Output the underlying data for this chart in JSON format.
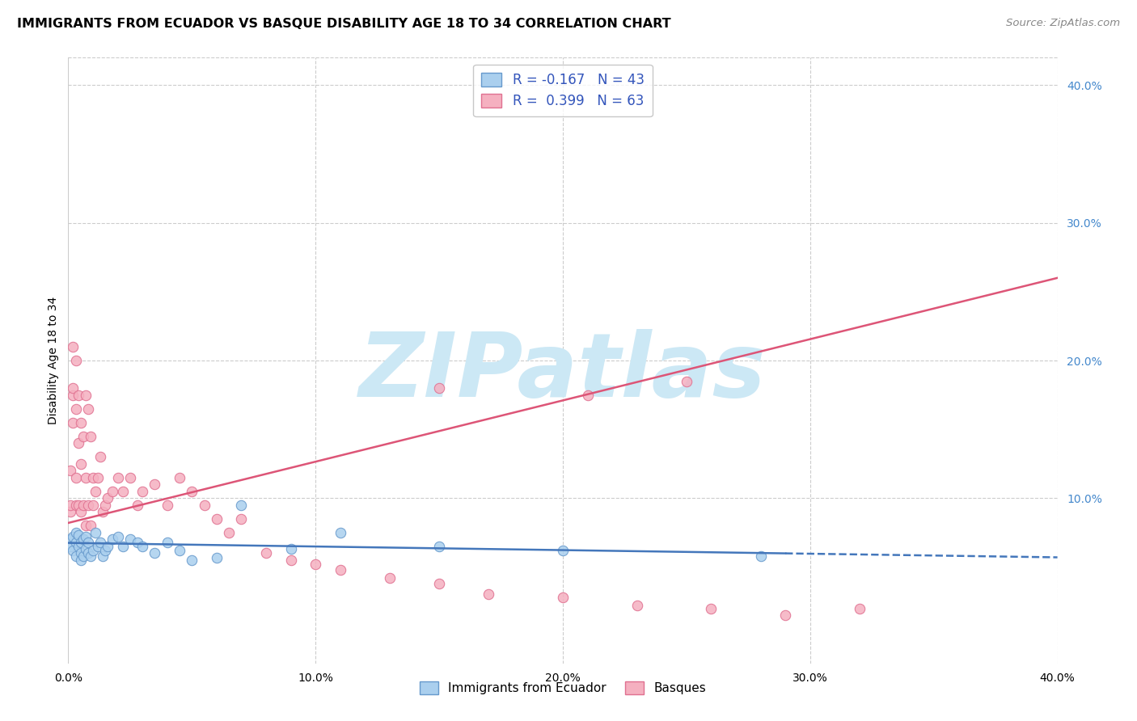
{
  "title": "IMMIGRANTS FROM ECUADOR VS BASQUE DISABILITY AGE 18 TO 34 CORRELATION CHART",
  "source": "Source: ZipAtlas.com",
  "ylabel": "Disability Age 18 to 34",
  "xlim": [
    0.0,
    0.4
  ],
  "ylim": [
    -0.02,
    0.42
  ],
  "xticks": [
    0.0,
    0.1,
    0.2,
    0.3,
    0.4
  ],
  "yticks_right": [
    0.1,
    0.2,
    0.3,
    0.4
  ],
  "xtick_labels": [
    "0.0%",
    "10.0%",
    "20.0%",
    "30.0%",
    "40.0%"
  ],
  "ytick_labels_right": [
    "10.0%",
    "20.0%",
    "30.0%",
    "40.0%"
  ],
  "grid_color": "#cccccc",
  "background_color": "#ffffff",
  "watermark_text": "ZIPatlas",
  "watermark_color": "#cce8f5",
  "ecuador_color": "#aacfee",
  "ecuador_edge_color": "#6699cc",
  "basque_color": "#f5b0c0",
  "basque_edge_color": "#e07090",
  "ecuador_R": -0.167,
  "ecuador_N": 43,
  "basque_R": 0.399,
  "basque_N": 63,
  "legend_label_ecuador": "Immigrants from Ecuador",
  "legend_label_basque": "Basques",
  "legend_R_color": "#3355bb",
  "ecuador_line_color": "#4477bb",
  "basque_line_color": "#dd5577",
  "ecuador_x": [
    0.001,
    0.001,
    0.002,
    0.002,
    0.003,
    0.003,
    0.003,
    0.004,
    0.004,
    0.005,
    0.005,
    0.005,
    0.006,
    0.006,
    0.007,
    0.007,
    0.008,
    0.008,
    0.009,
    0.01,
    0.011,
    0.012,
    0.013,
    0.014,
    0.015,
    0.016,
    0.018,
    0.02,
    0.022,
    0.025,
    0.028,
    0.03,
    0.035,
    0.04,
    0.045,
    0.05,
    0.06,
    0.07,
    0.09,
    0.11,
    0.15,
    0.2,
    0.28
  ],
  "ecuador_y": [
    0.07,
    0.065,
    0.072,
    0.062,
    0.068,
    0.075,
    0.058,
    0.065,
    0.073,
    0.068,
    0.06,
    0.055,
    0.07,
    0.058,
    0.072,
    0.063,
    0.06,
    0.068,
    0.058,
    0.062,
    0.075,
    0.065,
    0.068,
    0.058,
    0.062,
    0.065,
    0.07,
    0.072,
    0.065,
    0.07,
    0.068,
    0.065,
    0.06,
    0.068,
    0.062,
    0.055,
    0.057,
    0.095,
    0.063,
    0.075,
    0.065,
    0.062,
    0.058
  ],
  "basque_x": [
    0.001,
    0.001,
    0.001,
    0.002,
    0.002,
    0.002,
    0.002,
    0.003,
    0.003,
    0.003,
    0.003,
    0.004,
    0.004,
    0.004,
    0.005,
    0.005,
    0.005,
    0.006,
    0.006,
    0.007,
    0.007,
    0.007,
    0.008,
    0.008,
    0.009,
    0.009,
    0.01,
    0.01,
    0.011,
    0.012,
    0.013,
    0.014,
    0.015,
    0.016,
    0.018,
    0.02,
    0.022,
    0.025,
    0.028,
    0.03,
    0.035,
    0.04,
    0.045,
    0.05,
    0.055,
    0.06,
    0.065,
    0.07,
    0.08,
    0.09,
    0.1,
    0.11,
    0.13,
    0.15,
    0.17,
    0.2,
    0.23,
    0.26,
    0.29,
    0.32,
    0.15,
    0.21,
    0.25
  ],
  "basque_y": [
    0.09,
    0.12,
    0.095,
    0.175,
    0.21,
    0.18,
    0.155,
    0.2,
    0.165,
    0.115,
    0.095,
    0.175,
    0.14,
    0.095,
    0.155,
    0.125,
    0.09,
    0.145,
    0.095,
    0.175,
    0.115,
    0.08,
    0.165,
    0.095,
    0.145,
    0.08,
    0.115,
    0.095,
    0.105,
    0.115,
    0.13,
    0.09,
    0.095,
    0.1,
    0.105,
    0.115,
    0.105,
    0.115,
    0.095,
    0.105,
    0.11,
    0.095,
    0.115,
    0.105,
    0.095,
    0.085,
    0.075,
    0.085,
    0.06,
    0.055,
    0.052,
    0.048,
    0.042,
    0.038,
    0.03,
    0.028,
    0.022,
    0.02,
    0.015,
    0.02,
    0.18,
    0.175,
    0.185
  ]
}
